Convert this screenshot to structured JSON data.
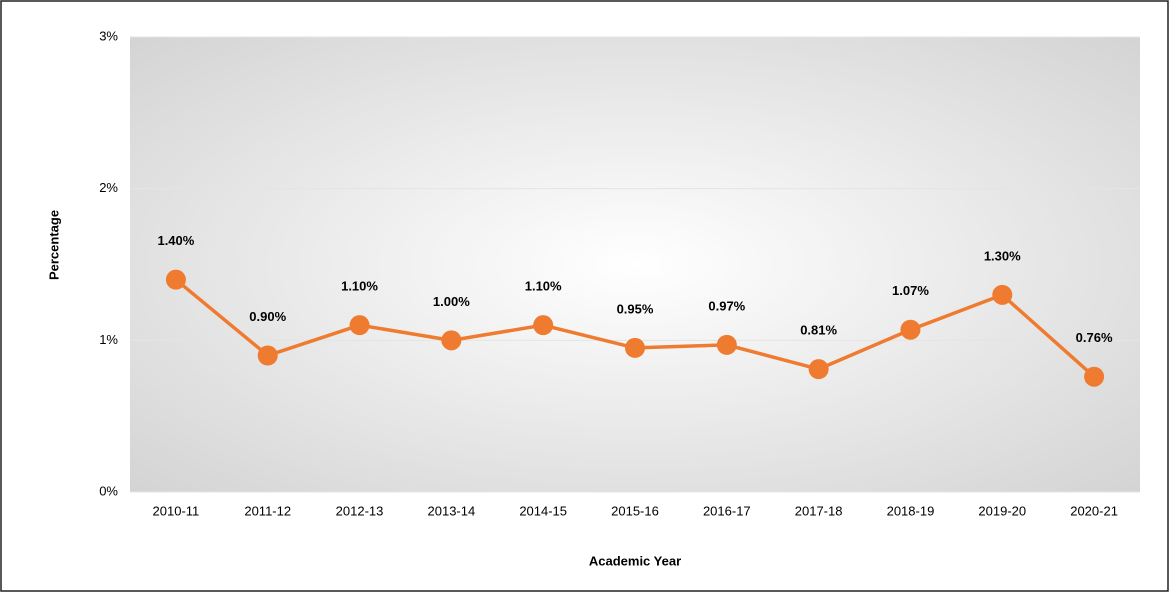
{
  "chart_data": {
    "type": "line",
    "x_label": "Academic Year",
    "y_label": "Percentage",
    "categories": [
      "2010-11",
      "2011-12",
      "2012-13",
      "2013-14",
      "2014-15",
      "2015-16",
      "2016-17",
      "2017-18",
      "2018-19",
      "2019-20",
      "2020-21"
    ],
    "series": [
      {
        "color": "#ee7b30",
        "values": [
          1.4,
          0.9,
          1.1,
          1.0,
          1.1,
          0.95,
          0.97,
          0.81,
          1.07,
          1.3,
          0.76
        ],
        "value_labels": [
          "1.40%",
          "0.90%",
          "1.10%",
          "1.00%",
          "1.10%",
          "0.95%",
          "0.97%",
          "0.81%",
          "1.07%",
          "1.30%",
          "0.76%"
        ]
      }
    ],
    "ylim": [
      0,
      3
    ],
    "yticks": [
      {
        "value": 0,
        "label": "0%"
      },
      {
        "value": 1,
        "label": "1%"
      },
      {
        "value": 2,
        "label": "2%"
      },
      {
        "value": 3,
        "label": "3%"
      }
    ],
    "grid": true
  }
}
